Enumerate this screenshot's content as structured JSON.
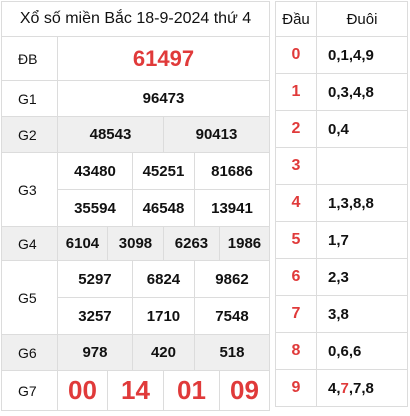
{
  "title": "Xổ số miền Bắc 18-9-2024 thứ 4",
  "prizes": {
    "db": {
      "label": "ĐB",
      "numbers": [
        "61497"
      ]
    },
    "g1": {
      "label": "G1",
      "numbers": [
        "96473"
      ]
    },
    "g2": {
      "label": "G2",
      "numbers": [
        "48543",
        "90413"
      ]
    },
    "g3": {
      "label": "G3",
      "numbers": [
        "43480",
        "45251",
        "81686",
        "35594",
        "46548",
        "13941"
      ]
    },
    "g4": {
      "label": "G4",
      "numbers": [
        "6104",
        "3098",
        "6263",
        "1986"
      ]
    },
    "g5": {
      "label": "G5",
      "numbers": [
        "5297",
        "6824",
        "9862",
        "3257",
        "1710",
        "7548"
      ]
    },
    "g6": {
      "label": "G6",
      "numbers": [
        "978",
        "420",
        "518"
      ]
    },
    "g7": {
      "label": "G7",
      "numbers": [
        "00",
        "14",
        "01",
        "09"
      ]
    }
  },
  "head_table": {
    "col_head": "Đầu",
    "col_tail": "Đuôi",
    "rows": [
      {
        "head": "0",
        "tail_a": "0,1,4,9",
        "tail_red": "",
        "tail_b": ""
      },
      {
        "head": "1",
        "tail_a": "0,3,4,8",
        "tail_red": "",
        "tail_b": ""
      },
      {
        "head": "2",
        "tail_a": "0,4",
        "tail_red": "",
        "tail_b": ""
      },
      {
        "head": "3",
        "tail_a": "",
        "tail_red": "",
        "tail_b": ""
      },
      {
        "head": "4",
        "tail_a": "1,3,8,8",
        "tail_red": "",
        "tail_b": ""
      },
      {
        "head": "5",
        "tail_a": "1,7",
        "tail_red": "",
        "tail_b": ""
      },
      {
        "head": "6",
        "tail_a": "2,3",
        "tail_red": "",
        "tail_b": ""
      },
      {
        "head": "7",
        "tail_a": "3,8",
        "tail_red": "",
        "tail_b": ""
      },
      {
        "head": "8",
        "tail_a": "0,6,6",
        "tail_red": "",
        "tail_b": ""
      },
      {
        "head": "9",
        "tail_a": "4,",
        "tail_red": "7",
        "tail_b": ",7,8"
      }
    ]
  },
  "colors": {
    "accent": "#e03a3a",
    "row_gray": "#efefef",
    "border": "#dcdcdc"
  }
}
